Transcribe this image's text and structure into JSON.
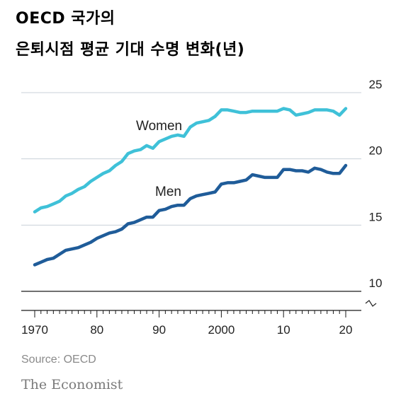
{
  "header": {
    "title_line1": "OECD 국가의",
    "title_line2": "은퇴시점 평균 기대 수명 변화(년)"
  },
  "chart_data": {
    "type": "line",
    "x": [
      1970,
      1971,
      1972,
      1973,
      1974,
      1975,
      1976,
      1977,
      1978,
      1979,
      1980,
      1981,
      1982,
      1983,
      1984,
      1985,
      1986,
      1987,
      1988,
      1989,
      1990,
      1991,
      1992,
      1993,
      1994,
      1995,
      1996,
      1997,
      1998,
      1999,
      2000,
      2001,
      2002,
      2003,
      2004,
      2005,
      2006,
      2007,
      2008,
      2009,
      2010,
      2011,
      2012,
      2013,
      2014,
      2015,
      2016,
      2017,
      2018,
      2019,
      2020
    ],
    "series": [
      {
        "name": "Women",
        "color": "#3fc1d8",
        "values": [
          16.0,
          16.3,
          16.4,
          16.6,
          16.8,
          17.2,
          17.4,
          17.7,
          17.9,
          18.3,
          18.6,
          18.9,
          19.1,
          19.5,
          19.8,
          20.4,
          20.6,
          20.7,
          21.0,
          20.8,
          21.3,
          21.5,
          21.7,
          21.8,
          21.7,
          22.4,
          22.7,
          22.8,
          22.9,
          23.2,
          23.7,
          23.7,
          23.6,
          23.5,
          23.5,
          23.6,
          23.6,
          23.6,
          23.6,
          23.6,
          23.8,
          23.7,
          23.3,
          23.4,
          23.5,
          23.7,
          23.7,
          23.7,
          23.6,
          23.3,
          23.8
        ]
      },
      {
        "name": "Men",
        "color": "#1f5c99",
        "values": [
          12.0,
          12.2,
          12.4,
          12.5,
          12.8,
          13.1,
          13.2,
          13.3,
          13.5,
          13.7,
          14.0,
          14.2,
          14.4,
          14.5,
          14.7,
          15.1,
          15.2,
          15.4,
          15.6,
          15.6,
          16.1,
          16.2,
          16.4,
          16.5,
          16.5,
          17.0,
          17.2,
          17.3,
          17.4,
          17.5,
          18.1,
          18.2,
          18.2,
          18.3,
          18.4,
          18.8,
          18.7,
          18.6,
          18.6,
          18.6,
          19.2,
          19.2,
          19.1,
          19.1,
          19.0,
          19.3,
          19.2,
          19.0,
          18.9,
          18.9,
          19.5
        ]
      }
    ],
    "ylim": [
      10,
      25
    ],
    "yticks": [
      10,
      15,
      20,
      25
    ],
    "xticks": [
      1970,
      1980,
      1990,
      2000,
      2010,
      2020
    ],
    "xtick_labels": [
      "1970",
      "80",
      "90",
      "2000",
      "10",
      "20"
    ],
    "grid": true
  },
  "footer": {
    "source": "Source: OECD",
    "brand": "The Economist"
  }
}
